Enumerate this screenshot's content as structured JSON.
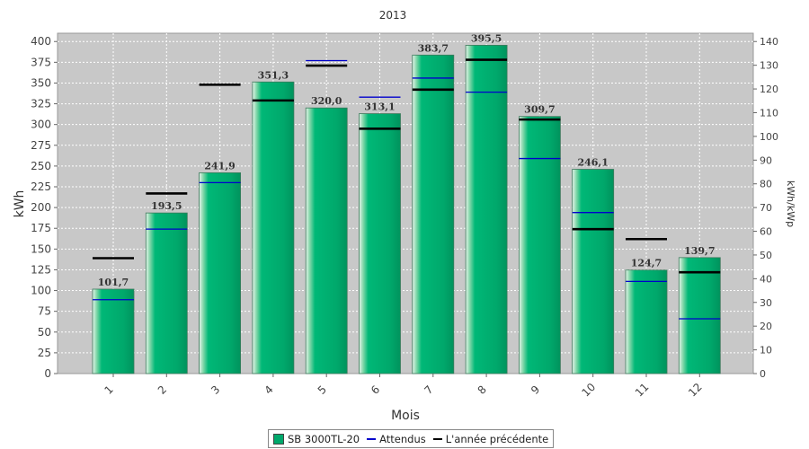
{
  "chart_data": {
    "type": "bar",
    "title": "2013",
    "xlabel": "Mois",
    "ylabel": "kWh",
    "ylabel_right": "kWh/kWp",
    "ylim": [
      0,
      410
    ],
    "ylim_right": [
      0,
      143.5
    ],
    "yticks": [
      0,
      25,
      50,
      75,
      100,
      125,
      150,
      175,
      200,
      225,
      250,
      275,
      300,
      325,
      350,
      375,
      400
    ],
    "yticks_right": [
      0,
      10,
      20,
      30,
      40,
      50,
      60,
      70,
      80,
      90,
      100,
      110,
      120,
      130,
      140
    ],
    "grid": true,
    "legend_position": "bottom",
    "categories": [
      "1",
      "2",
      "3",
      "4",
      "5",
      "6",
      "7",
      "8",
      "9",
      "10",
      "11",
      "12"
    ],
    "series": [
      {
        "name": "SB 3000TL-20",
        "kind": "bar",
        "color": "#00a86b",
        "values": [
          101.7,
          193.5,
          241.9,
          351.3,
          320.0,
          313.1,
          383.7,
          395.5,
          309.7,
          246.1,
          124.7,
          139.7
        ],
        "labels": [
          "101,7",
          "193,5",
          "241,9",
          "351,3",
          "320,0",
          "313,1",
          "383,7",
          "395,5",
          "309,7",
          "246,1",
          "124,7",
          "139,7"
        ]
      },
      {
        "name": "Attendus",
        "kind": "marker",
        "color": "#0000cc",
        "values": [
          89,
          174,
          230,
          329,
          377,
          333,
          356,
          339,
          259,
          194,
          111,
          66
        ]
      },
      {
        "name": "L'année précédente",
        "kind": "marker",
        "color": "#000000",
        "values": [
          139,
          217,
          348,
          329,
          371,
          295,
          342,
          378,
          306,
          174,
          162,
          122
        ]
      }
    ]
  }
}
